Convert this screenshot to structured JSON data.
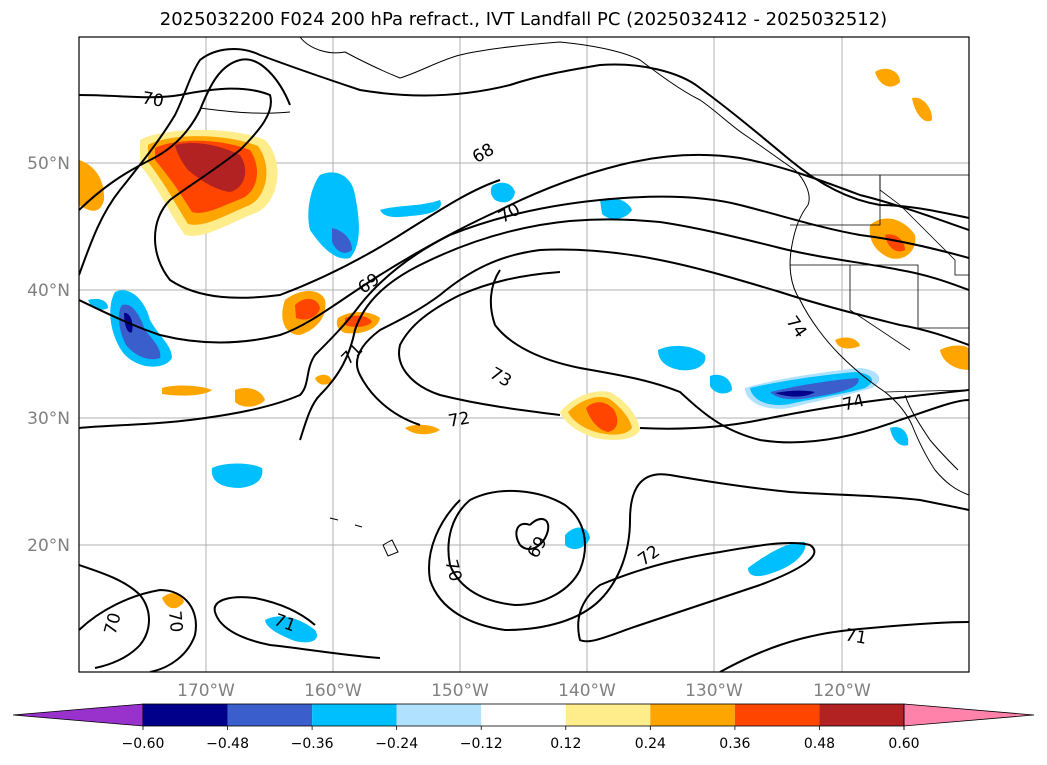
{
  "title": "2025032200 F024 200 hPa refract., IVT Landfall PC (2025032412 - 2025032512)",
  "map": {
    "lat_labels": [
      "50°N",
      "40°N",
      "30°N",
      "20°N"
    ],
    "lon_labels": [
      "170°W",
      "160°W",
      "150°W",
      "140°W",
      "130°W",
      "120°W"
    ],
    "contour_labels": [
      {
        "text": "70",
        "angle": 10
      },
      {
        "text": "68",
        "angle": -30
      },
      {
        "text": "70",
        "angle": -30
      },
      {
        "text": "69",
        "angle": -35
      },
      {
        "text": "71",
        "angle": -45
      },
      {
        "text": "73",
        "angle": 30
      },
      {
        "text": "72",
        "angle": -10
      },
      {
        "text": "74",
        "angle": 55
      },
      {
        "text": "74",
        "angle": -15
      },
      {
        "text": "69",
        "angle": -60
      },
      {
        "text": "70",
        "angle": 75
      },
      {
        "text": "72",
        "angle": -35
      },
      {
        "text": "71",
        "angle": 10
      },
      {
        "text": "71",
        "angle": 20
      },
      {
        "text": "70",
        "angle": -75
      },
      {
        "text": "70",
        "angle": 85
      }
    ]
  },
  "colorbar": {
    "tick_labels": [
      "−0.60",
      "−0.48",
      "−0.36",
      "−0.24",
      "−0.12",
      "0.12",
      "0.24",
      "0.36",
      "0.48",
      "0.60"
    ],
    "colors": {
      "under": "#9932cc",
      "bins": [
        "#00008b",
        "#3a5fcd",
        "#00bfff",
        "#b0e2ff",
        "#ffffff",
        "#ffec8b",
        "#ffa500",
        "#ff4500",
        "#b22222"
      ],
      "over": "#ff82ab"
    }
  },
  "colors": {
    "gridline": "#b0b0b0",
    "contour": "#000000",
    "label_gray": "#808080"
  }
}
